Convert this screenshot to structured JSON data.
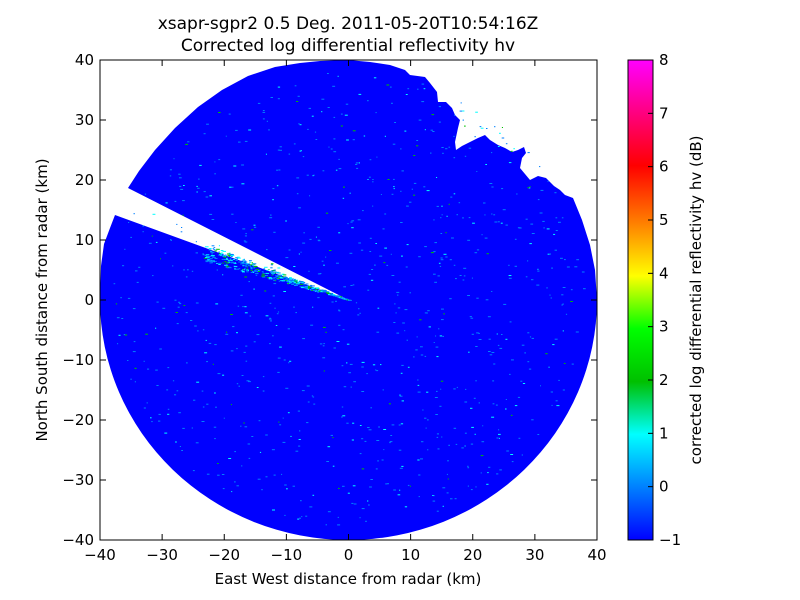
{
  "chart_data": {
    "type": "heatmap",
    "subtype": "radar-ppi",
    "title_line1": "xsapr-sgpr2 0.5 Deg. 2011-05-20T10:54:16Z",
    "title_line2": "Corrected log differential reflectivity hv",
    "xlabel": "East West distance from radar (km)",
    "ylabel": "North South distance from radar (km)",
    "xlim": [
      -40,
      40
    ],
    "ylim": [
      -40,
      40
    ],
    "xticks": [
      "−40",
      "−30",
      "−20",
      "−10",
      "0",
      "10",
      "20",
      "30",
      "40"
    ],
    "yticks": [
      "40",
      "30",
      "20",
      "10",
      "0",
      "−10",
      "−20",
      "−30",
      "−40"
    ],
    "max_range_km": 40,
    "colorbar": {
      "label": "corrected log differential reflectivity hv (dB)",
      "vmin": -1,
      "vmax": 8,
      "ticks": [
        "8",
        "7",
        "6",
        "5",
        "4",
        "3",
        "2",
        "1",
        "0",
        "−1"
      ],
      "colormap": [
        "#0000ff",
        "#0080ff",
        "#00ffff",
        "#00c000",
        "#00ff00",
        "#ffff00",
        "#ff8000",
        "#ff0000",
        "#ff00ff"
      ]
    },
    "dominant_value_db": -1,
    "grid": false,
    "legend": "none"
  }
}
